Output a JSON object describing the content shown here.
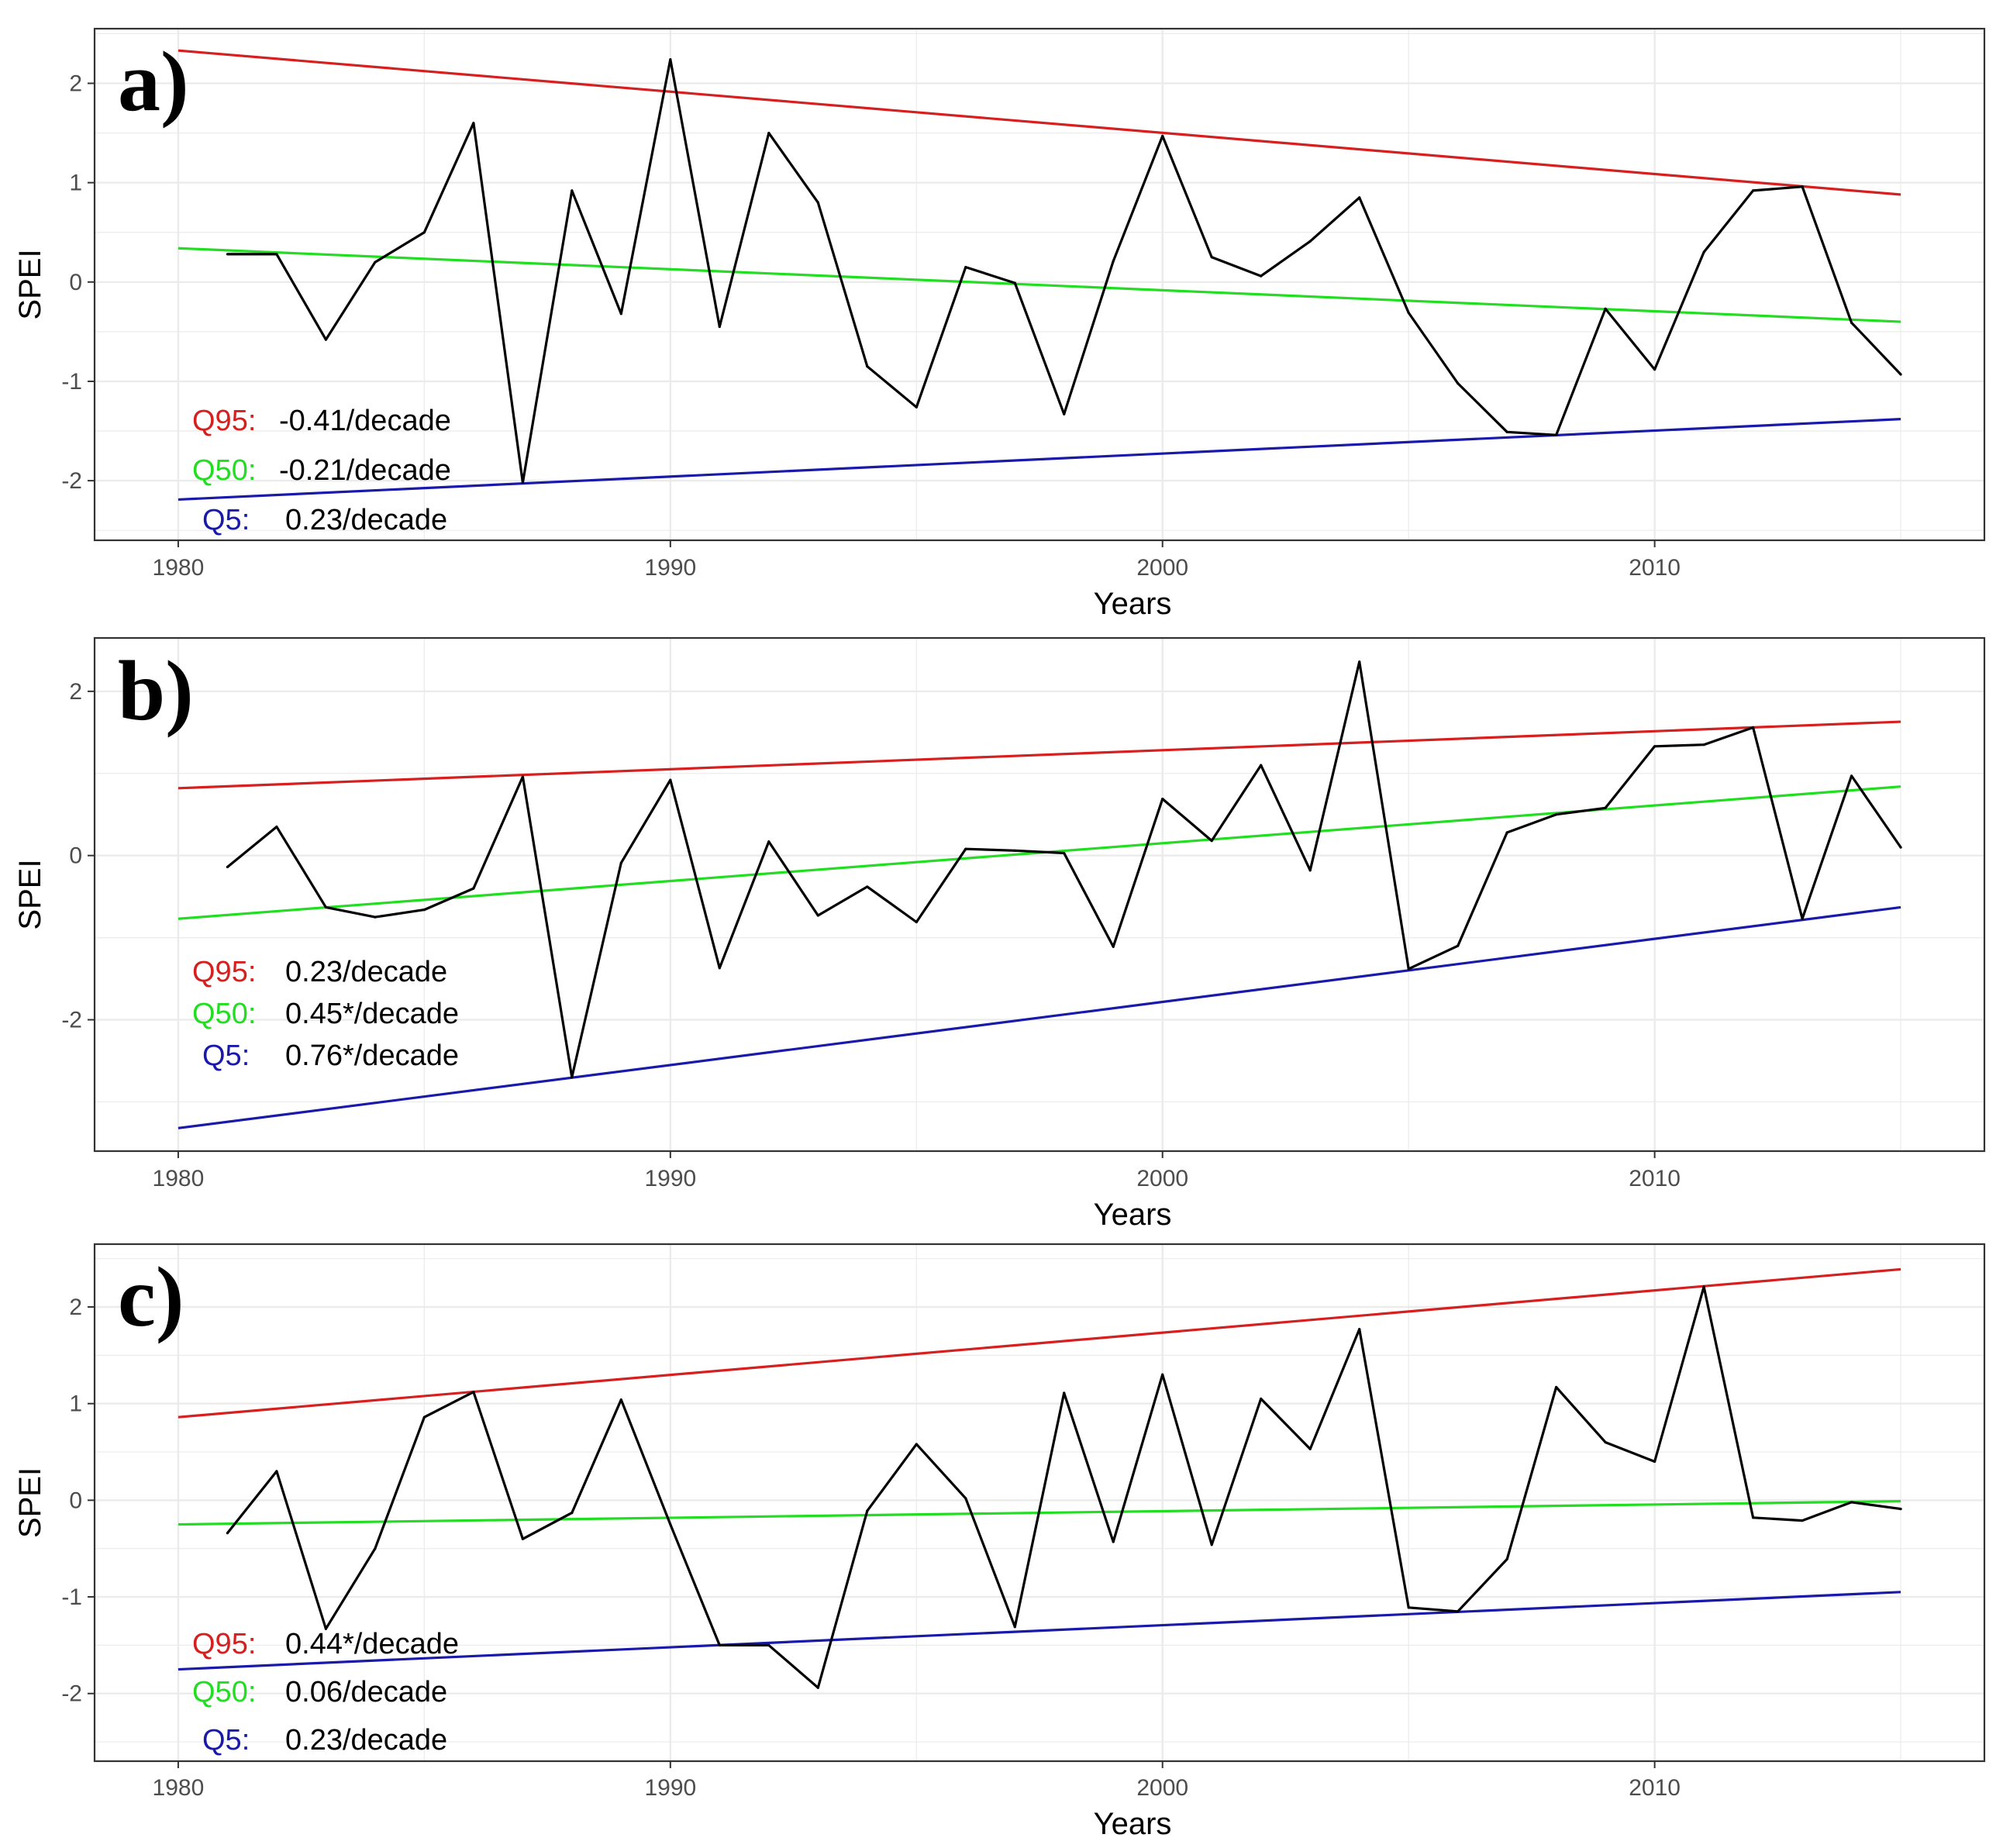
{
  "colors": {
    "q95": "#d62020",
    "q50": "#22dd22",
    "q5": "#1a1aaa",
    "series": "#000000",
    "grid": "#ebebeb",
    "border": "#333333"
  },
  "chart_data": [
    {
      "type": "line",
      "panel_label": "a)",
      "xlabel": "Years",
      "ylabel": "SPEI",
      "xlim": [
        1978.3,
        2016.7
      ],
      "ylim": [
        -2.6,
        2.55
      ],
      "xticks": [
        1980,
        1990,
        2000,
        2010
      ],
      "xtick_labels": [
        "1980",
        "1990",
        "2000",
        "2010"
      ],
      "yticks": [
        -2,
        -1,
        0,
        1,
        2
      ],
      "ytick_labels": [
        "-2",
        "-1",
        "0",
        "1",
        "2"
      ],
      "series": [
        {
          "name": "SPEI",
          "x": [
            1981,
            1982,
            1983,
            1984,
            1985,
            1986,
            1987,
            1988,
            1989,
            1990,
            1991,
            1992,
            1993,
            1994,
            1995,
            1996,
            1997,
            1998,
            1999,
            2000,
            2001,
            2002,
            2003,
            2004,
            2005,
            2006,
            2007,
            2008,
            2009,
            2010,
            2011,
            2012,
            2013,
            2014,
            2015
          ],
          "values": [
            0.28,
            0.28,
            -0.58,
            0.2,
            0.5,
            1.6,
            -2.02,
            0.92,
            -0.32,
            2.24,
            -0.45,
            1.5,
            0.8,
            -0.85,
            -1.26,
            0.15,
            -0.01,
            -1.33,
            0.21,
            1.47,
            0.25,
            0.06,
            0.41,
            0.85,
            -0.31,
            -1.02,
            -1.51,
            -1.54,
            -0.27,
            -0.88,
            0.3,
            0.92,
            0.96,
            -0.41,
            -0.93
          ]
        }
      ],
      "trend_lines": [
        {
          "name": "Q95",
          "x": [
            1980,
            2015
          ],
          "values": [
            2.33,
            0.88
          ]
        },
        {
          "name": "Q50",
          "x": [
            1980,
            2015
          ],
          "values": [
            0.34,
            -0.4
          ]
        },
        {
          "name": "Q5",
          "x": [
            1980,
            2015
          ],
          "values": [
            -2.19,
            -1.38
          ]
        }
      ],
      "annotations": [
        {
          "quantile": "Q95:",
          "value": "-0.41/decade"
        },
        {
          "quantile": "Q50:",
          "value": "-0.21/decade"
        },
        {
          "quantile": "Q5:",
          "value": "0.23/decade"
        }
      ]
    },
    {
      "type": "line",
      "panel_label": "b)",
      "xlabel": "Years",
      "ylabel": "SPEI",
      "xlim": [
        1978.3,
        2016.7
      ],
      "ylim": [
        -3.6,
        2.65
      ],
      "xticks": [
        1980,
        1990,
        2000,
        2010
      ],
      "xtick_labels": [
        "1980",
        "1990",
        "2000",
        "2010"
      ],
      "yticks": [
        -2,
        0,
        2
      ],
      "ytick_labels": [
        "-2",
        "0",
        "2"
      ],
      "series": [
        {
          "name": "SPEI",
          "x": [
            1981,
            1982,
            1983,
            1984,
            1985,
            1986,
            1987,
            1988,
            1989,
            1990,
            1991,
            1992,
            1993,
            1994,
            1995,
            1996,
            1997,
            1998,
            1999,
            2000,
            2001,
            2002,
            2003,
            2004,
            2005,
            2006,
            2007,
            2008,
            2009,
            2010,
            2011,
            2012,
            2013,
            2014,
            2015
          ],
          "values": [
            -0.14,
            0.35,
            -0.63,
            -0.75,
            -0.66,
            -0.4,
            0.96,
            -2.7,
            -0.09,
            0.92,
            -1.37,
            0.17,
            -0.73,
            -0.38,
            -0.81,
            0.08,
            0.06,
            0.03,
            -1.11,
            0.69,
            0.18,
            1.1,
            -0.18,
            2.36,
            -1.38,
            -1.1,
            0.28,
            0.5,
            0.58,
            1.33,
            1.35,
            1.56,
            -0.77,
            0.97,
            0.1
          ]
        }
      ],
      "trend_lines": [
        {
          "name": "Q95",
          "x": [
            1980,
            2015
          ],
          "values": [
            0.82,
            1.63
          ]
        },
        {
          "name": "Q50",
          "x": [
            1980,
            2015
          ],
          "values": [
            -0.77,
            0.84
          ]
        },
        {
          "name": "Q5",
          "x": [
            1980,
            2015
          ],
          "values": [
            -3.32,
            -0.63
          ]
        }
      ],
      "annotations": [
        {
          "quantile": "Q95:",
          "value": "0.23/decade"
        },
        {
          "quantile": "Q50:",
          "value": "0.45*/decade"
        },
        {
          "quantile": "Q5:",
          "value": "0.76*/decade"
        }
      ]
    },
    {
      "type": "line",
      "panel_label": "c)",
      "xlabel": "Years",
      "ylabel": "SPEI",
      "xlim": [
        1978.3,
        2016.7
      ],
      "ylim": [
        -2.7,
        2.65
      ],
      "xticks": [
        1980,
        1990,
        2000,
        2010
      ],
      "xtick_labels": [
        "1980",
        "1990",
        "2000",
        "2010"
      ],
      "yticks": [
        -2,
        -1,
        0,
        1,
        2
      ],
      "ytick_labels": [
        "-2",
        "-1",
        "0",
        "1",
        "2"
      ],
      "series": [
        {
          "name": "SPEI",
          "x": [
            1981,
            1982,
            1983,
            1984,
            1985,
            1986,
            1987,
            1988,
            1989,
            1990,
            1991,
            1992,
            1993,
            1994,
            1995,
            1996,
            1997,
            1998,
            1999,
            2000,
            2001,
            2002,
            2003,
            2004,
            2005,
            2006,
            2007,
            2008,
            2009,
            2010,
            2011,
            2012,
            2013,
            2014,
            2015
          ],
          "values": [
            -0.34,
            0.3,
            -1.33,
            -0.5,
            0.86,
            1.12,
            -0.4,
            -0.13,
            1.04,
            -0.25,
            -1.5,
            -1.5,
            -1.94,
            -0.11,
            0.58,
            0.02,
            -1.31,
            1.11,
            -0.43,
            1.3,
            -0.46,
            1.05,
            0.53,
            1.77,
            -1.11,
            -1.15,
            -0.61,
            1.17,
            0.6,
            0.4,
            2.21,
            -0.18,
            -0.21,
            -0.02,
            -0.09
          ]
        }
      ],
      "trend_lines": [
        {
          "name": "Q95",
          "x": [
            1980,
            2015
          ],
          "values": [
            0.86,
            2.39
          ]
        },
        {
          "name": "Q50",
          "x": [
            1980,
            2015
          ],
          "values": [
            -0.25,
            -0.01
          ]
        },
        {
          "name": "Q5",
          "x": [
            1980,
            2015
          ],
          "values": [
            -1.75,
            -0.95
          ]
        }
      ],
      "annotations": [
        {
          "quantile": "Q95:",
          "value": "0.44*/decade"
        },
        {
          "quantile": "Q50:",
          "value": "0.06/decade"
        },
        {
          "quantile": "Q5:",
          "value": "0.23/decade"
        }
      ]
    }
  ]
}
